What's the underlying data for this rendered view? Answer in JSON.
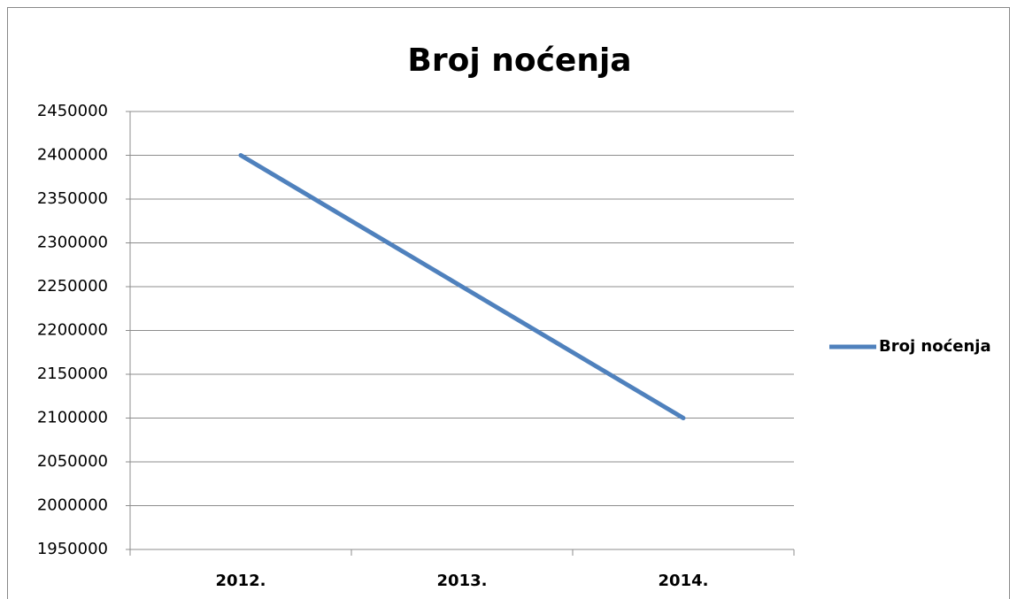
{
  "chart_data": {
    "type": "line",
    "title": "Broj noćenja",
    "categories": [
      "2012.",
      "2013.",
      "2014."
    ],
    "series": [
      {
        "name": "Broj noćenja",
        "color": "#4f81bd",
        "values": [
          2400000,
          2250000,
          2100000
        ]
      }
    ],
    "ylim": [
      1950000,
      2450000
    ],
    "yticks": [
      1950000,
      2000000,
      2050000,
      2100000,
      2150000,
      2200000,
      2250000,
      2300000,
      2350000,
      2400000,
      2450000
    ],
    "grid": true,
    "legend": "right"
  }
}
